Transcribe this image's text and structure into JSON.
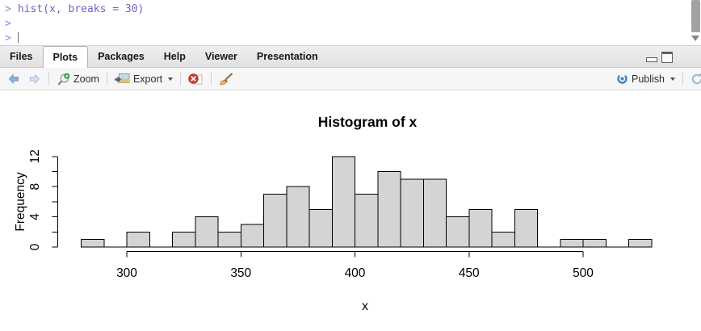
{
  "console": {
    "prompt": ">",
    "command": "hist(x, breaks = 30)",
    "extra_prompts": [
      ">",
      ">"
    ]
  },
  "tabs": {
    "items": [
      "Files",
      "Plots",
      "Packages",
      "Help",
      "Viewer",
      "Presentation"
    ],
    "active": "Plots"
  },
  "toolbar": {
    "zoom_label": "Zoom",
    "export_label": "Export",
    "publish_label": "Publish",
    "icon_names": [
      "back-icon",
      "forward-icon",
      "magnifier-zoom-icon",
      "export-image-icon",
      "remove-plot-icon",
      "broom-icon",
      "publish-icon",
      "refresh-icon"
    ]
  },
  "window_controls": [
    "minimize",
    "maximize"
  ],
  "colors": {
    "console_command": "#6a66c4",
    "console_prompt": "#8d8bd0",
    "bar_fill": "#d4d4d4",
    "bar_stroke": "#000000",
    "publish_blue": "#3f86c6",
    "remove_red": "#d23b2f",
    "back_arrow_blue": "#8fb2da",
    "forward_arrow_blue": "#d3e2f2"
  },
  "chart_data": {
    "type": "bar",
    "subtype": "histogram",
    "title": "Histogram of x",
    "xlabel": "x",
    "ylabel": "Frequency",
    "bin_start": 280,
    "bin_width": 10,
    "counts": [
      1,
      0,
      2,
      0,
      2,
      4,
      2,
      3,
      7,
      8,
      5,
      12,
      7,
      10,
      9,
      9,
      4,
      5,
      2,
      5,
      0,
      1,
      1,
      0,
      1
    ],
    "x_ticks": [
      300,
      350,
      400,
      450,
      500
    ],
    "y_ticks": [
      0,
      2,
      4,
      6,
      8,
      10,
      12
    ],
    "y_tick_labels": [
      "0",
      "4",
      "8",
      "12"
    ],
    "xlim": [
      280,
      530
    ],
    "ylim": [
      0,
      12
    ],
    "grid": false,
    "legend": false
  }
}
